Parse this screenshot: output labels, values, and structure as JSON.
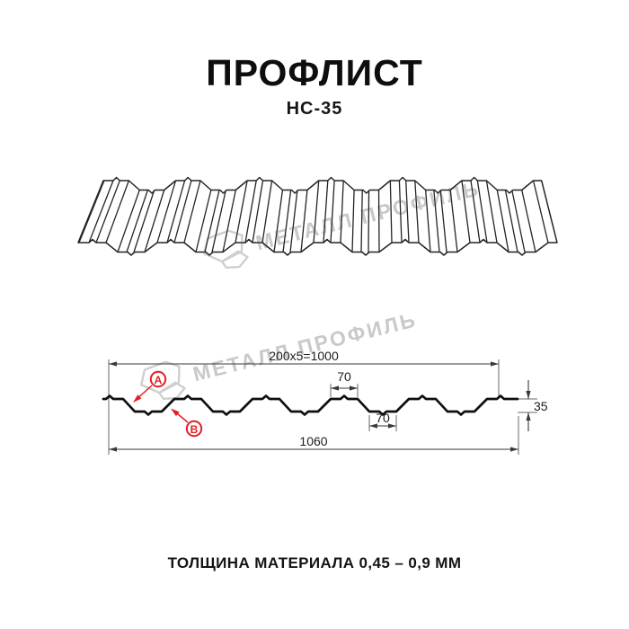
{
  "header": {
    "title": "ПРОФЛИСТ",
    "subtitle": "НС-35"
  },
  "watermark": {
    "brand": "МЕТАЛЛ ПРОФИЛЬ",
    "color": "#c9c9c9"
  },
  "section": {
    "dimensions": {
      "cover_width": "200x5=1000",
      "overall_width": "1060",
      "top_flange_width": "70",
      "bottom_flange_width": "70",
      "profile_height": "35"
    },
    "callouts": {
      "a": "А",
      "b": "В"
    },
    "accent_color": "#e31e24"
  },
  "footer": {
    "thickness_note": "ТОЛЩИНА МАТЕРИАЛА 0,45 – 0,9 ММ"
  }
}
